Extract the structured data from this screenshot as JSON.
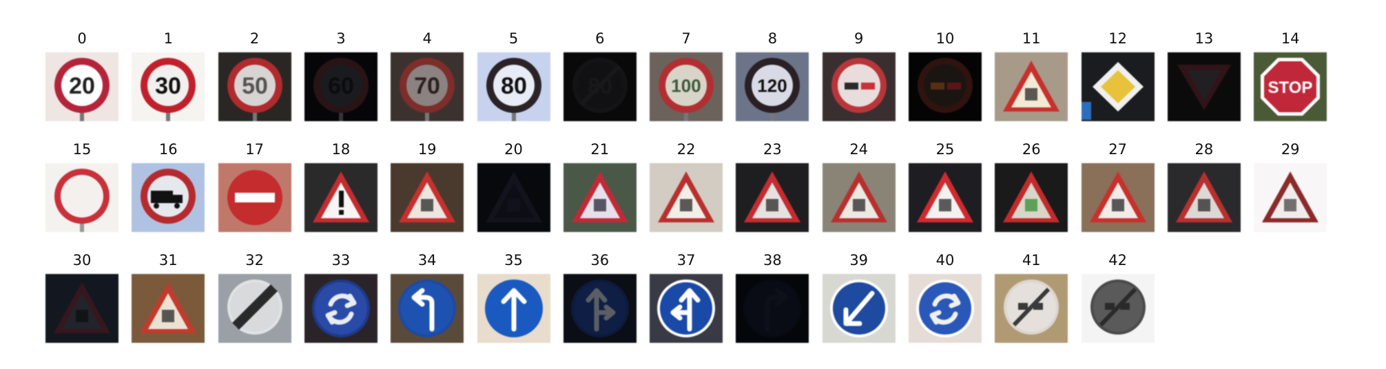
{
  "signs": [
    {
      "label": "0",
      "kind": "speed",
      "text": "20",
      "bg": "#efe6e3",
      "ring": "#b3243a",
      "face": "#ffffff",
      "ink": "#222222",
      "dark": false
    },
    {
      "label": "1",
      "kind": "speed",
      "text": "30",
      "bg": "#f6f4f1",
      "ring": "#c0202c",
      "face": "#f2f0ee",
      "ink": "#111111",
      "dark": false
    },
    {
      "label": "2",
      "kind": "speed",
      "text": "50",
      "bg": "#2a2624",
      "ring": "#b02a2e",
      "face": "#d8d4d4",
      "ink": "#555555",
      "dark": false
    },
    {
      "label": "3",
      "kind": "speed",
      "text": "60",
      "bg": "#0e0f14",
      "ring": "#5a2a33",
      "face": "#3a3c46",
      "ink": "#1a1c24",
      "dark": true
    },
    {
      "label": "4",
      "kind": "speed",
      "text": "70",
      "bg": "#3b3230",
      "ring": "#7d2d2a",
      "face": "#8b8281",
      "ink": "#2a2220",
      "dark": false
    },
    {
      "label": "5",
      "kind": "speed",
      "text": "80",
      "bg": "#c6d2ee",
      "ring": "#2a2226",
      "face": "#e8ecf6",
      "ink": "#111111",
      "dark": false
    },
    {
      "label": "6",
      "kind": "end-speed",
      "text": "80",
      "bg": "#141416",
      "ring": "#2e2e32",
      "face": "#26262a",
      "ink": "#353538",
      "dark": true
    },
    {
      "label": "7",
      "kind": "speed",
      "text": "100",
      "bg": "#6b625c",
      "ring": "#b12f32",
      "face": "#d9d4c8",
      "ink": "#3a5a3a",
      "dark": false
    },
    {
      "label": "8",
      "kind": "speed",
      "text": "120",
      "bg": "#6c7489",
      "ring": "#2a1f24",
      "face": "#d8dbe5",
      "ink": "#111111",
      "dark": false
    },
    {
      "label": "9",
      "kind": "no-passing",
      "text": "",
      "bg": "#3a2f30",
      "ring": "#b8353a",
      "face": "#e8dcdc",
      "ink": "#2a2a2a",
      "dark": false
    },
    {
      "label": "10",
      "kind": "no-passing",
      "text": "",
      "bg": "#0c0a0c",
      "ring": "#6a2a22",
      "face": "#3c3028",
      "ink": "#c26a2a",
      "dark": true
    },
    {
      "label": "11",
      "kind": "triangle",
      "text": "",
      "bg": "#a89a88",
      "ring": "#c8302c",
      "face": "#f2ead4",
      "ink": "#1a1a1a",
      "dark": false
    },
    {
      "label": "12",
      "kind": "priority",
      "text": "",
      "bg": "#1a1c20",
      "ring": "#f0f0ee",
      "face": "#e8c23a",
      "ink": "#2a6ec0",
      "dark": false
    },
    {
      "label": "13",
      "kind": "yield",
      "text": "",
      "bg": "#1c1a1c",
      "ring": "#6a2e38",
      "face": "#4a454c",
      "ink": "#2a2a2a",
      "dark": true
    },
    {
      "label": "14",
      "kind": "stop",
      "text": "STOP",
      "bg": "#4a5a36",
      "ring": "#ffffff",
      "face": "#c0283a",
      "ink": "#ffffff",
      "dark": false
    },
    {
      "label": "15",
      "kind": "no-vehicles",
      "text": "",
      "bg": "#f4f2ee",
      "ring": "#c8303a",
      "face": "#f4f0ee",
      "ink": "#222222",
      "dark": false
    },
    {
      "label": "16",
      "kind": "no-trucks",
      "text": "",
      "bg": "#b0c2e2",
      "ring": "#b52a2e",
      "face": "#e6e8ee",
      "ink": "#111111",
      "dark": false
    },
    {
      "label": "17",
      "kind": "no-entry",
      "text": "",
      "bg": "#c0786a",
      "ring": "#c42c2e",
      "face": "#c42c2e",
      "ink": "#ffffff",
      "dark": false
    },
    {
      "label": "18",
      "kind": "triangle",
      "text": "!",
      "bg": "#2a2a2a",
      "ring": "#c42c30",
      "face": "#f8f6f4",
      "ink": "#111111",
      "dark": false
    },
    {
      "label": "19",
      "kind": "triangle",
      "text": "",
      "bg": "#4a3a2e",
      "ring": "#c8302e",
      "face": "#ece6de",
      "ink": "#1a1a1a",
      "dark": false
    },
    {
      "label": "20",
      "kind": "triangle",
      "text": "",
      "bg": "#12141e",
      "ring": "#2a2a40",
      "face": "#1e2030",
      "ink": "#2a2e44",
      "dark": true
    },
    {
      "label": "21",
      "kind": "triangle",
      "text": "",
      "bg": "#4a5848",
      "ring": "#c02a36",
      "face": "#e6e0ea",
      "ink": "#1a1a2a",
      "dark": false
    },
    {
      "label": "22",
      "kind": "triangle",
      "text": "",
      "bg": "#d2ccc2",
      "ring": "#b8302e",
      "face": "#f2eee8",
      "ink": "#1a1a1a",
      "dark": false
    },
    {
      "label": "23",
      "kind": "triangle",
      "text": "",
      "bg": "#1e1e20",
      "ring": "#c42c30",
      "face": "#e6e2e2",
      "ink": "#1a1a1a",
      "dark": false
    },
    {
      "label": "24",
      "kind": "triangle",
      "text": "",
      "bg": "#8a8476",
      "ring": "#b8302e",
      "face": "#ece8e2",
      "ink": "#1a1a1a",
      "dark": false
    },
    {
      "label": "25",
      "kind": "triangle",
      "text": "",
      "bg": "#1e1e22",
      "ring": "#d02a2e",
      "face": "#f4f2f0",
      "ink": "#1a1a1a",
      "dark": false
    },
    {
      "label": "26",
      "kind": "triangle",
      "text": "",
      "bg": "#1a1a1a",
      "ring": "#c22a2c",
      "face": "#d8d6c8",
      "ink": "#2a8a2a",
      "dark": false
    },
    {
      "label": "27",
      "kind": "triangle",
      "text": "",
      "bg": "#8a7058",
      "ring": "#c8302e",
      "face": "#f0ece8",
      "ink": "#1a1a1a",
      "dark": false
    },
    {
      "label": "28",
      "kind": "triangle",
      "text": "",
      "bg": "#2a2a2c",
      "ring": "#b8302e",
      "face": "#ddd8d6",
      "ink": "#1a1a1a",
      "dark": false
    },
    {
      "label": "29",
      "kind": "triangle",
      "text": "",
      "bg": "#f8f6f6",
      "ring": "#8a2a2a",
      "face": "#f0ecec",
      "ink": "#3a3a3a",
      "dark": false
    },
    {
      "label": "30",
      "kind": "triangle",
      "text": "",
      "bg": "#2c3346",
      "ring": "#7a3440",
      "face": "#4a5060",
      "ink": "#1a1a1a",
      "dark": true
    },
    {
      "label": "31",
      "kind": "triangle",
      "text": "",
      "bg": "#7a5a3a",
      "ring": "#c23a2e",
      "face": "#ece2d4",
      "ink": "#1a1a1a",
      "dark": false
    },
    {
      "label": "32",
      "kind": "end-all",
      "text": "",
      "bg": "#9aa0a6",
      "ring": "#e0e2e4",
      "face": "#d8dadc",
      "ink": "#2a2a2a",
      "dark": false
    },
    {
      "label": "33",
      "kind": "blue-roundabout",
      "text": "",
      "bg": "#2a2428",
      "ring": "#1e3a8a",
      "face": "#2a4aa8",
      "ink": "#e8ecf4",
      "dark": false
    },
    {
      "label": "34",
      "kind": "blue-left",
      "text": "",
      "bg": "#5a4a3a",
      "ring": "#1e4aa0",
      "face": "#1e52b0",
      "ink": "#ffffff",
      "dark": false
    },
    {
      "label": "35",
      "kind": "blue-ahead",
      "text": "",
      "bg": "#e8dccc",
      "ring": "#1a5ac0",
      "face": "#1a5ac0",
      "ink": "#ffffff",
      "dark": false
    },
    {
      "label": "36",
      "kind": "blue-ahead-right",
      "text": "",
      "bg": "#1a2030",
      "ring": "#1e3a86",
      "face": "#22449a",
      "ink": "#c8d0e0",
      "dark": true
    },
    {
      "label": "37",
      "kind": "blue-ahead-left",
      "text": "",
      "bg": "#3a3a44",
      "ring": "#ffffff",
      "face": "#1a4aa8",
      "ink": "#ffffff",
      "dark": false
    },
    {
      "label": "38",
      "kind": "blue-right",
      "text": "",
      "bg": "#0c0e16",
      "ring": "#141a2e",
      "face": "#161c30",
      "ink": "#1e2438",
      "dark": true
    },
    {
      "label": "39",
      "kind": "blue-keep-left",
      "text": "",
      "bg": "#d8d8d2",
      "ring": "#ffffff",
      "face": "#1e4aa0",
      "ink": "#ffffff",
      "dark": false
    },
    {
      "label": "40",
      "kind": "blue-roundabout",
      "text": "",
      "bg": "#e6dcd6",
      "ring": "#ffffff",
      "face": "#2a58b8",
      "ink": "#f0f0f0",
      "dark": false
    },
    {
      "label": "41",
      "kind": "end-passing",
      "text": "",
      "bg": "#b09a74",
      "ring": "#dcd6d0",
      "face": "#e6e0dc",
      "ink": "#3a3a3a",
      "dark": false
    },
    {
      "label": "42",
      "kind": "end-passing",
      "text": "",
      "bg": "#f4f4f4",
      "ring": "#4a4a4a",
      "face": "#5a5a5a",
      "ink": "#2a2a2a",
      "dark": false
    }
  ]
}
